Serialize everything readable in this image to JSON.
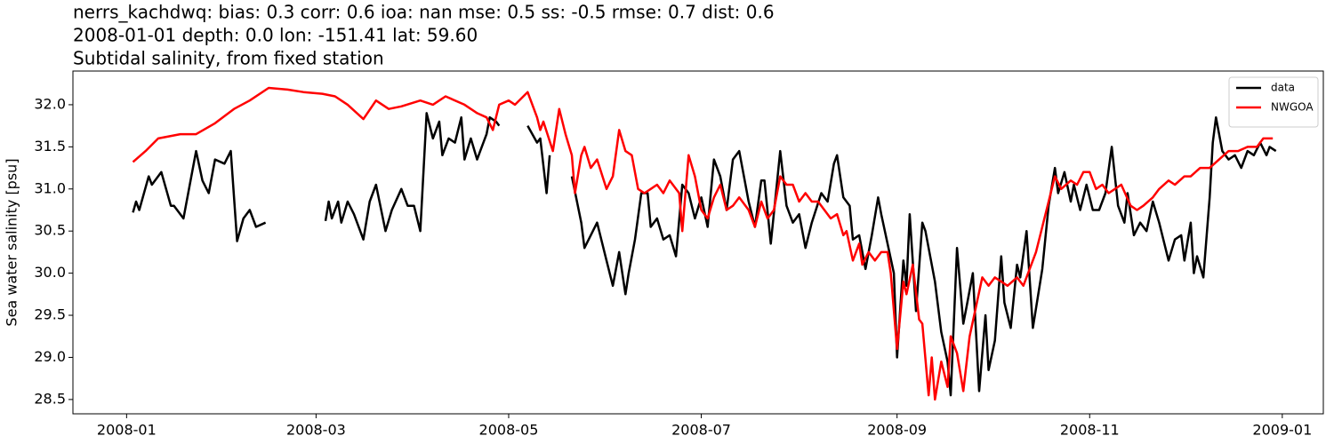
{
  "chart_data": {
    "type": "line",
    "title": "nerrs_kachdwq: bias: 0.3  corr: 0.6  ioa: nan  mse: 0.5  ss: -0.5  rmse: 0.7  dist: 0.6",
    "subtitle": "2008-01-01 depth: 0.0 lon: -151.41 lat: 59.60",
    "subtitle2": "Subtidal salinity, from fixed station",
    "ylabel": "Sea water salinity [psu]",
    "xlim": [
      "2007-12-15",
      "2009-01-14"
    ],
    "xticks": [
      {
        "value": "2008-01-01",
        "label": "2008-01"
      },
      {
        "value": "2008-03-01",
        "label": "2008-03"
      },
      {
        "value": "2008-05-01",
        "label": "2008-05"
      },
      {
        "value": "2008-07-01",
        "label": "2008-07"
      },
      {
        "value": "2008-09-01",
        "label": "2008-09"
      },
      {
        "value": "2008-11-01",
        "label": "2008-11"
      },
      {
        "value": "2009-01-01",
        "label": "2009-01"
      }
    ],
    "ylim": [
      28.33,
      32.4
    ],
    "yticks": [
      28.5,
      {
        "value": 29,
        "label": "29.0"
      },
      29.5,
      {
        "value": 30,
        "label": "30.0"
      },
      30.5,
      {
        "value": 31,
        "label": "31.0"
      },
      31.5,
      {
        "value": 32,
        "label": "32.0"
      }
    ],
    "legend": "upper right",
    "series": [
      {
        "name": "data",
        "color": "#000000",
        "x": [
          "2008-01-03",
          "2008-01-04",
          "2008-01-05",
          "2008-01-08",
          "2008-01-09",
          "2008-01-12",
          "2008-01-15",
          "2008-01-16",
          "2008-01-19",
          "2008-01-21",
          "2008-01-23",
          "2008-01-25",
          "2008-01-27",
          "2008-01-29",
          "2008-02-01",
          "2008-02-03",
          "2008-02-05",
          "2008-02-07",
          "2008-02-09",
          "2008-02-11",
          "2008-02-14",
          "2008-02-28",
          "2008-03-04",
          "2008-03-05",
          "2008-03-06",
          "2008-03-08",
          "2008-03-09",
          "2008-03-11",
          "2008-03-13",
          "2008-03-16",
          "2008-03-18",
          "2008-03-20",
          "2008-03-23",
          "2008-03-25",
          "2008-03-28",
          "2008-03-30",
          "2008-04-01",
          "2008-04-03",
          "2008-04-05",
          "2008-04-07",
          "2008-04-09",
          "2008-04-10",
          "2008-04-12",
          "2008-04-14",
          "2008-04-16",
          "2008-04-17",
          "2008-04-19",
          "2008-04-21",
          "2008-04-22",
          "2008-04-24",
          "2008-04-25",
          "2008-04-27",
          "2008-04-28",
          "2008-05-04",
          "2008-05-07",
          "2008-05-10",
          "2008-05-11",
          "2008-05-13",
          "2008-05-14",
          "2008-05-20",
          "2008-05-21",
          "2008-05-24",
          "2008-05-25",
          "2008-05-27",
          "2008-05-29",
          "2008-06-01",
          "2008-06-03",
          "2008-06-05",
          "2008-06-07",
          "2008-06-08",
          "2008-06-10",
          "2008-06-12",
          "2008-06-14",
          "2008-06-15",
          "2008-06-17",
          "2008-06-19",
          "2008-06-21",
          "2008-06-23",
          "2008-06-25",
          "2008-06-27",
          "2008-06-29",
          "2008-07-01",
          "2008-07-03",
          "2008-07-05",
          "2008-07-07",
          "2008-07-09",
          "2008-07-11",
          "2008-07-13",
          "2008-07-16",
          "2008-07-18",
          "2008-07-20",
          "2008-07-21",
          "2008-07-23",
          "2008-07-26",
          "2008-07-28",
          "2008-07-30",
          "2008-08-01",
          "2008-08-03",
          "2008-08-05",
          "2008-08-08",
          "2008-08-10",
          "2008-08-12",
          "2008-08-13",
          "2008-08-15",
          "2008-08-17",
          "2008-08-18",
          "2008-08-20",
          "2008-08-22",
          "2008-08-24",
          "2008-08-26",
          "2008-08-27",
          "2008-08-29",
          "2008-08-31",
          "2008-09-01",
          "2008-09-03",
          "2008-09-04",
          "2008-09-05",
          "2008-09-07",
          "2008-09-09",
          "2008-09-10",
          "2008-09-13",
          "2008-09-15",
          "2008-09-17",
          "2008-09-18",
          "2008-09-20",
          "2008-09-22",
          "2008-09-23",
          "2008-09-25",
          "2008-09-27",
          "2008-09-29",
          "2008-09-30",
          "2008-10-02",
          "2008-10-04",
          "2008-10-05",
          "2008-10-07",
          "2008-10-09",
          "2008-10-10",
          "2008-10-12",
          "2008-10-14",
          "2008-10-17",
          "2008-10-19",
          "2008-10-21",
          "2008-10-22",
          "2008-10-24",
          "2008-10-26",
          "2008-10-27",
          "2008-10-29",
          "2008-10-31",
          "2008-11-02",
          "2008-11-04",
          "2008-11-06",
          "2008-11-08",
          "2008-11-10",
          "2008-11-12",
          "2008-11-13",
          "2008-11-15",
          "2008-11-17",
          "2008-11-19",
          "2008-11-21",
          "2008-11-23",
          "2008-11-26",
          "2008-11-28",
          "2008-11-30",
          "2008-12-01",
          "2008-12-03",
          "2008-12-04",
          "2008-12-05",
          "2008-12-07",
          "2008-12-09",
          "2008-12-10",
          "2008-12-11",
          "2008-12-13",
          "2008-12-15",
          "2008-12-17",
          "2008-12-19",
          "2008-12-21",
          "2008-12-23",
          "2008-12-25",
          "2008-12-27",
          "2008-12-28",
          "2008-12-30"
        ],
        "values": [
          30.72,
          30.85,
          30.75,
          31.15,
          31.05,
          31.2,
          30.8,
          30.8,
          30.65,
          31.05,
          31.45,
          31.1,
          30.95,
          31.35,
          31.3,
          31.45,
          30.38,
          30.65,
          30.75,
          30.55,
          30.6,
          null,
          30.62,
          30.85,
          30.65,
          30.85,
          30.6,
          30.85,
          30.7,
          30.4,
          30.85,
          31.05,
          30.5,
          30.75,
          31.0,
          30.8,
          30.8,
          30.5,
          31.9,
          31.6,
          31.8,
          31.4,
          31.6,
          31.55,
          31.85,
          31.35,
          31.6,
          31.35,
          31.45,
          31.65,
          31.85,
          31.8,
          31.75,
          null,
          31.75,
          31.55,
          31.6,
          30.95,
          31.4,
          null,
          31.15,
          30.6,
          30.3,
          30.45,
          30.6,
          30.15,
          29.85,
          30.25,
          29.75,
          30.0,
          30.4,
          30.95,
          30.95,
          30.55,
          30.65,
          30.4,
          30.45,
          30.2,
          31.05,
          30.95,
          30.65,
          30.9,
          30.55,
          31.35,
          31.15,
          30.75,
          31.35,
          31.45,
          30.85,
          30.55,
          31.1,
          31.1,
          30.35,
          31.45,
          30.8,
          30.6,
          30.7,
          30.3,
          30.6,
          30.95,
          30.85,
          31.3,
          31.4,
          30.9,
          30.8,
          30.4,
          30.45,
          30.05,
          30.45,
          30.9,
          30.7,
          30.35,
          30.0,
          29.0,
          30.15,
          29.85,
          30.7,
          29.55,
          30.6,
          30.5,
          29.9,
          29.3,
          28.95,
          28.55,
          30.3,
          29.4,
          29.6,
          30.0,
          28.6,
          29.5,
          28.85,
          29.2,
          30.2,
          29.65,
          29.35,
          30.1,
          29.95,
          30.5,
          29.35,
          30.05,
          30.8,
          31.25,
          30.95,
          31.2,
          30.85,
          31.05,
          30.75,
          31.05,
          30.75,
          30.75,
          30.95,
          31.5,
          30.8,
          30.6,
          30.95,
          30.45,
          30.6,
          30.5,
          30.85,
          30.6,
          30.15,
          30.4,
          30.45,
          30.15,
          30.6,
          30.0,
          30.2,
          29.95,
          30.9,
          31.55,
          31.85,
          31.45,
          31.35,
          31.4,
          31.25,
          31.45,
          31.4,
          31.55,
          31.4,
          31.5,
          31.45
        ]
      },
      {
        "name": "NWGOA",
        "color": "#ff0000",
        "x": [
          "2008-01-03",
          "2008-01-07",
          "2008-01-11",
          "2008-01-18",
          "2008-01-23",
          "2008-01-29",
          "2008-02-04",
          "2008-02-09",
          "2008-02-15",
          "2008-02-21",
          "2008-02-26",
          "2008-03-03",
          "2008-03-07",
          "2008-03-11",
          "2008-03-16",
          "2008-03-20",
          "2008-03-24",
          "2008-03-28",
          "2008-04-03",
          "2008-04-07",
          "2008-04-11",
          "2008-04-17",
          "2008-04-21",
          "2008-04-24",
          "2008-04-26",
          "2008-04-28",
          "2008-05-01",
          "2008-05-03",
          "2008-05-07",
          "2008-05-10",
          "2008-05-11",
          "2008-05-12",
          "2008-05-15",
          "2008-05-17",
          "2008-05-19",
          "2008-05-21",
          "2008-05-22",
          "2008-05-24",
          "2008-05-25",
          "2008-05-27",
          "2008-05-29",
          "2008-06-01",
          "2008-06-03",
          "2008-06-05",
          "2008-06-07",
          "2008-06-09",
          "2008-06-11",
          "2008-06-13",
          "2008-06-15",
          "2008-06-17",
          "2008-06-19",
          "2008-06-21",
          "2008-06-24",
          "2008-06-25",
          "2008-06-27",
          "2008-06-29",
          "2008-07-01",
          "2008-07-03",
          "2008-07-05",
          "2008-07-07",
          "2008-07-09",
          "2008-07-11",
          "2008-07-13",
          "2008-07-16",
          "2008-07-18",
          "2008-07-20",
          "2008-07-22",
          "2008-07-24",
          "2008-07-26",
          "2008-07-28",
          "2008-07-30",
          "2008-08-01",
          "2008-08-03",
          "2008-08-05",
          "2008-08-07",
          "2008-08-09",
          "2008-08-11",
          "2008-08-13",
          "2008-08-15",
          "2008-08-16",
          "2008-08-18",
          "2008-08-20",
          "2008-08-21",
          "2008-08-23",
          "2008-08-25",
          "2008-08-27",
          "2008-08-29",
          "2008-08-30",
          "2008-09-01",
          "2008-09-03",
          "2008-09-04",
          "2008-09-06",
          "2008-09-08",
          "2008-09-09",
          "2008-09-11",
          "2008-09-12",
          "2008-09-13",
          "2008-09-15",
          "2008-09-17",
          "2008-09-18",
          "2008-09-20",
          "2008-09-22",
          "2008-09-24",
          "2008-09-26",
          "2008-09-28",
          "2008-09-30",
          "2008-10-02",
          "2008-10-04",
          "2008-10-06",
          "2008-10-09",
          "2008-10-11",
          "2008-10-13",
          "2008-10-15",
          "2008-10-17",
          "2008-10-19",
          "2008-10-21",
          "2008-10-23",
          "2008-10-26",
          "2008-10-28",
          "2008-10-30",
          "2008-11-01",
          "2008-11-03",
          "2008-11-05",
          "2008-11-07",
          "2008-11-09",
          "2008-11-11",
          "2008-11-14",
          "2008-11-16",
          "2008-11-18",
          "2008-11-21",
          "2008-11-23",
          "2008-11-26",
          "2008-11-28",
          "2008-12-01",
          "2008-12-03",
          "2008-12-06",
          "2008-12-09",
          "2008-12-12",
          "2008-12-15",
          "2008-12-18",
          "2008-12-21",
          "2008-12-24",
          "2008-12-26",
          "2008-12-29"
        ],
        "values": [
          31.32,
          31.45,
          31.6,
          31.65,
          31.65,
          31.78,
          31.95,
          32.05,
          32.2,
          32.18,
          32.15,
          32.13,
          32.1,
          32.0,
          31.83,
          32.05,
          31.95,
          31.98,
          32.05,
          32.0,
          32.1,
          32.0,
          31.9,
          31.85,
          31.7,
          32.0,
          32.05,
          32.0,
          32.15,
          31.85,
          31.7,
          31.8,
          31.45,
          31.95,
          31.65,
          31.4,
          30.95,
          31.4,
          31.5,
          31.25,
          31.35,
          31.0,
          31.15,
          31.7,
          31.45,
          31.4,
          31.0,
          30.95,
          31.0,
          31.05,
          30.95,
          31.1,
          30.95,
          30.5,
          31.4,
          31.15,
          30.75,
          30.65,
          30.9,
          31.05,
          30.75,
          30.8,
          30.9,
          30.75,
          30.55,
          30.85,
          30.65,
          30.75,
          31.15,
          31.05,
          31.05,
          30.85,
          30.95,
          30.85,
          30.85,
          30.75,
          30.65,
          30.7,
          30.45,
          30.5,
          30.15,
          30.35,
          30.1,
          30.25,
          30.15,
          30.25,
          30.25,
          30.0,
          29.1,
          29.9,
          29.75,
          30.1,
          29.45,
          29.4,
          28.55,
          29.0,
          28.5,
          28.95,
          28.65,
          29.25,
          29.05,
          28.6,
          29.25,
          29.6,
          29.95,
          29.85,
          29.95,
          29.9,
          29.85,
          29.95,
          29.85,
          30.05,
          30.25,
          30.55,
          30.85,
          31.15,
          31.0,
          31.1,
          31.05,
          31.2,
          31.2,
          31.0,
          31.05,
          30.95,
          31.0,
          31.05,
          30.8,
          30.75,
          30.8,
          30.9,
          31.0,
          31.1,
          31.05,
          31.15,
          31.15,
          31.25,
          31.25,
          31.35,
          31.45,
          31.45,
          31.5,
          31.5,
          31.6,
          31.6
        ]
      }
    ]
  }
}
